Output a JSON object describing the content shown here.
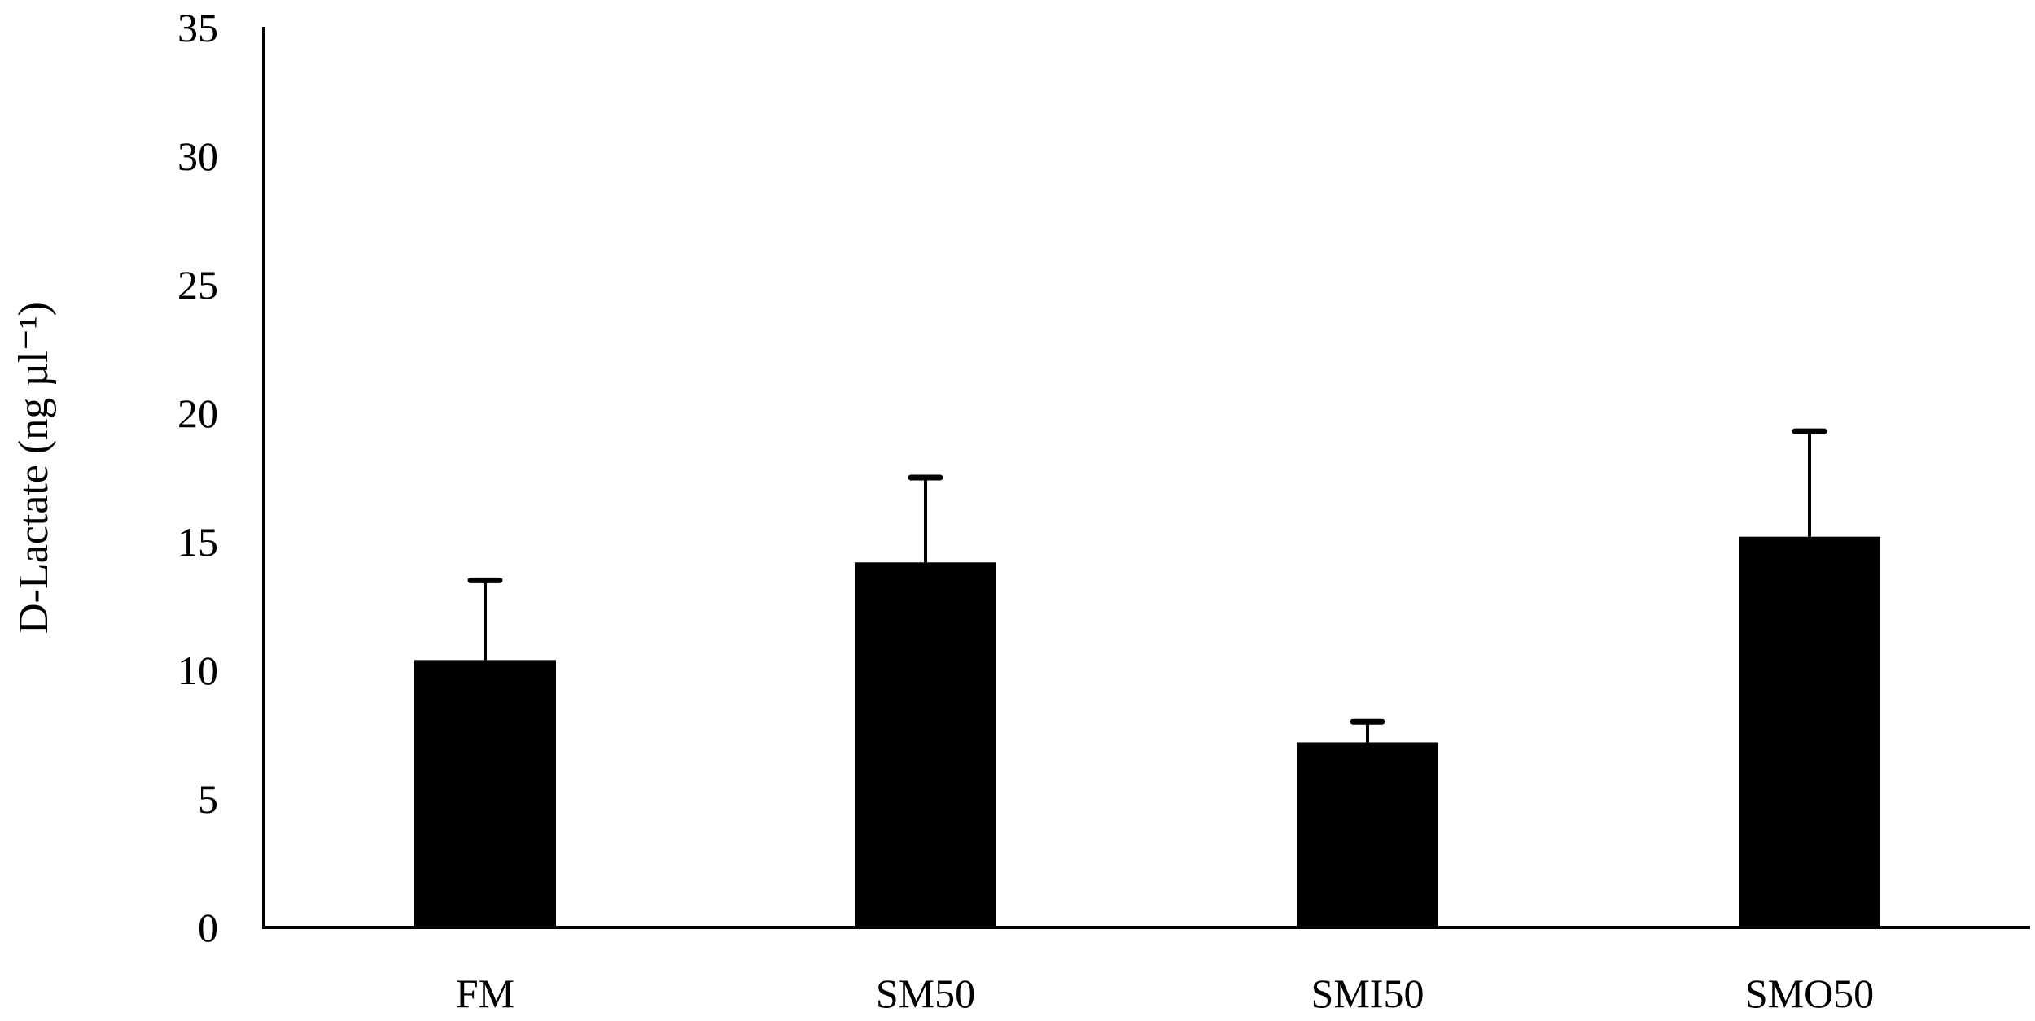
{
  "chart_data": {
    "type": "bar",
    "title": "",
    "xlabel": "",
    "ylabel": "D-Lactate (ng µl⁻¹)",
    "ylim": [
      0,
      35
    ],
    "yticks": [
      0,
      5,
      10,
      15,
      20,
      25,
      30,
      35
    ],
    "grid": false,
    "legend": null,
    "categories": [
      "FM",
      "SM50",
      "SMI50",
      "SMO50"
    ],
    "values": [
      10.4,
      14.2,
      7.2,
      15.2
    ],
    "error_bars_upper": [
      3.1,
      3.3,
      0.8,
      4.1
    ],
    "bar_color": "#000000"
  }
}
